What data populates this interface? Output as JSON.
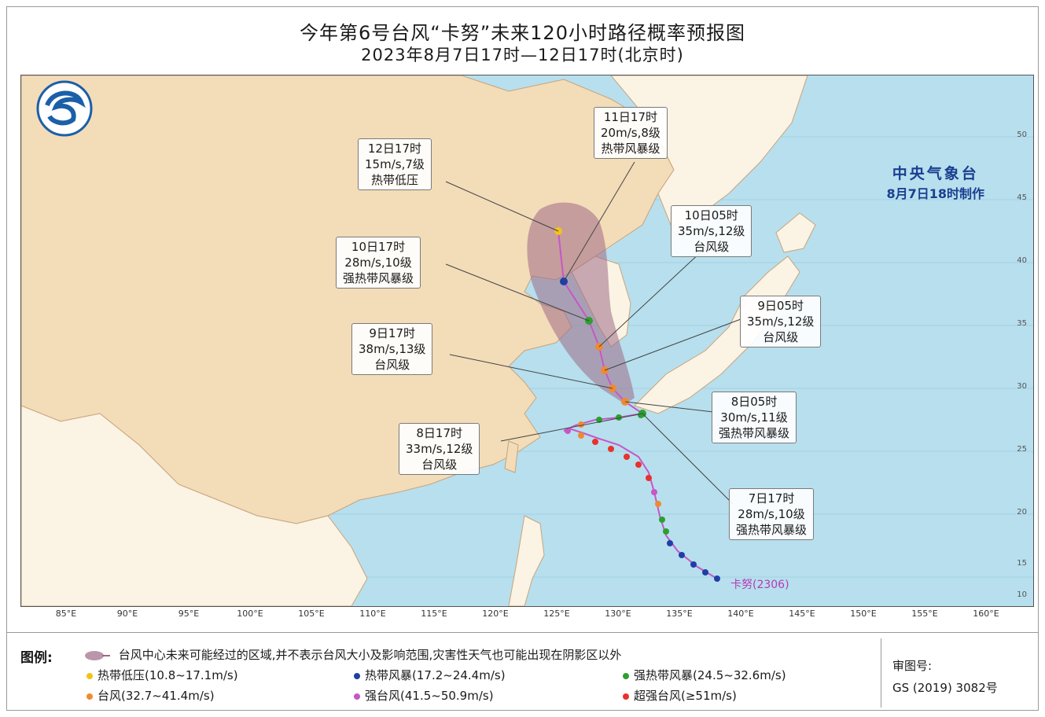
{
  "title": {
    "line1": "今年第6号台风“卡努”未来120小时路径概率预报图",
    "line2": "2023年8月7日17时—12日17时(北京时)"
  },
  "agency": {
    "name": "中央气象台",
    "made": "8月7日18时制作"
  },
  "storm_label": "卡努(2306)",
  "callouts": [
    {
      "time": "12日17时",
      "speed": "15m/s,7级",
      "grade": "热带低压"
    },
    {
      "time": "11日17时",
      "speed": "20m/s,8级",
      "grade": "热带风暴级"
    },
    {
      "time": "10日05时",
      "speed": "35m/s,12级",
      "grade": "台风级"
    },
    {
      "time": "10日17时",
      "speed": "28m/s,10级",
      "grade": "强热带风暴级"
    },
    {
      "time": "9日05时",
      "speed": "35m/s,12级",
      "grade": "台风级"
    },
    {
      "time": "9日17时",
      "speed": "38m/s,13级",
      "grade": "台风级"
    },
    {
      "time": "8日05时",
      "speed": "30m/s,11级",
      "grade": "强热带风暴级"
    },
    {
      "time": "8日17时",
      "speed": "33m/s,12级",
      "grade": "台风级"
    },
    {
      "time": "7日17时",
      "speed": "28m/s,10级",
      "grade": "强热带风暴级"
    }
  ],
  "lon_ticks": [
    "85°E",
    "90°E",
    "95°E",
    "100°E",
    "105°E",
    "110°E",
    "115°E",
    "120°E",
    "125°E",
    "130°E",
    "135°E",
    "140°E",
    "145°E",
    "150°E",
    "155°E",
    "160°E"
  ],
  "lat_ticks": [
    "50",
    "45",
    "40",
    "35",
    "30",
    "25",
    "20",
    "15",
    "10"
  ],
  "legend": {
    "title": "图例:",
    "cone": "台风中心未来可能经过的区域,并不表示台风大小及影响范围,灾害性天气也可能出现在阴影区以外",
    "items": [
      {
        "label": "热带低压(10.8~17.1m/s)",
        "color": "#f2c21b"
      },
      {
        "label": "热带风暴(17.2~24.4m/s)",
        "color": "#1f3fa6"
      },
      {
        "label": "强热带风暴(24.5~32.6m/s)",
        "color": "#2ca02c"
      },
      {
        "label": "台风(32.7~41.4m/s)",
        "color": "#f08a30"
      },
      {
        "label": "强台风(41.5~50.9m/s)",
        "color": "#c657c6"
      },
      {
        "label": "超强台风(≥51m/s)",
        "color": "#e8322b"
      }
    ]
  },
  "review": {
    "label": "审图号:",
    "number": "GS (2019) 3082号"
  }
}
